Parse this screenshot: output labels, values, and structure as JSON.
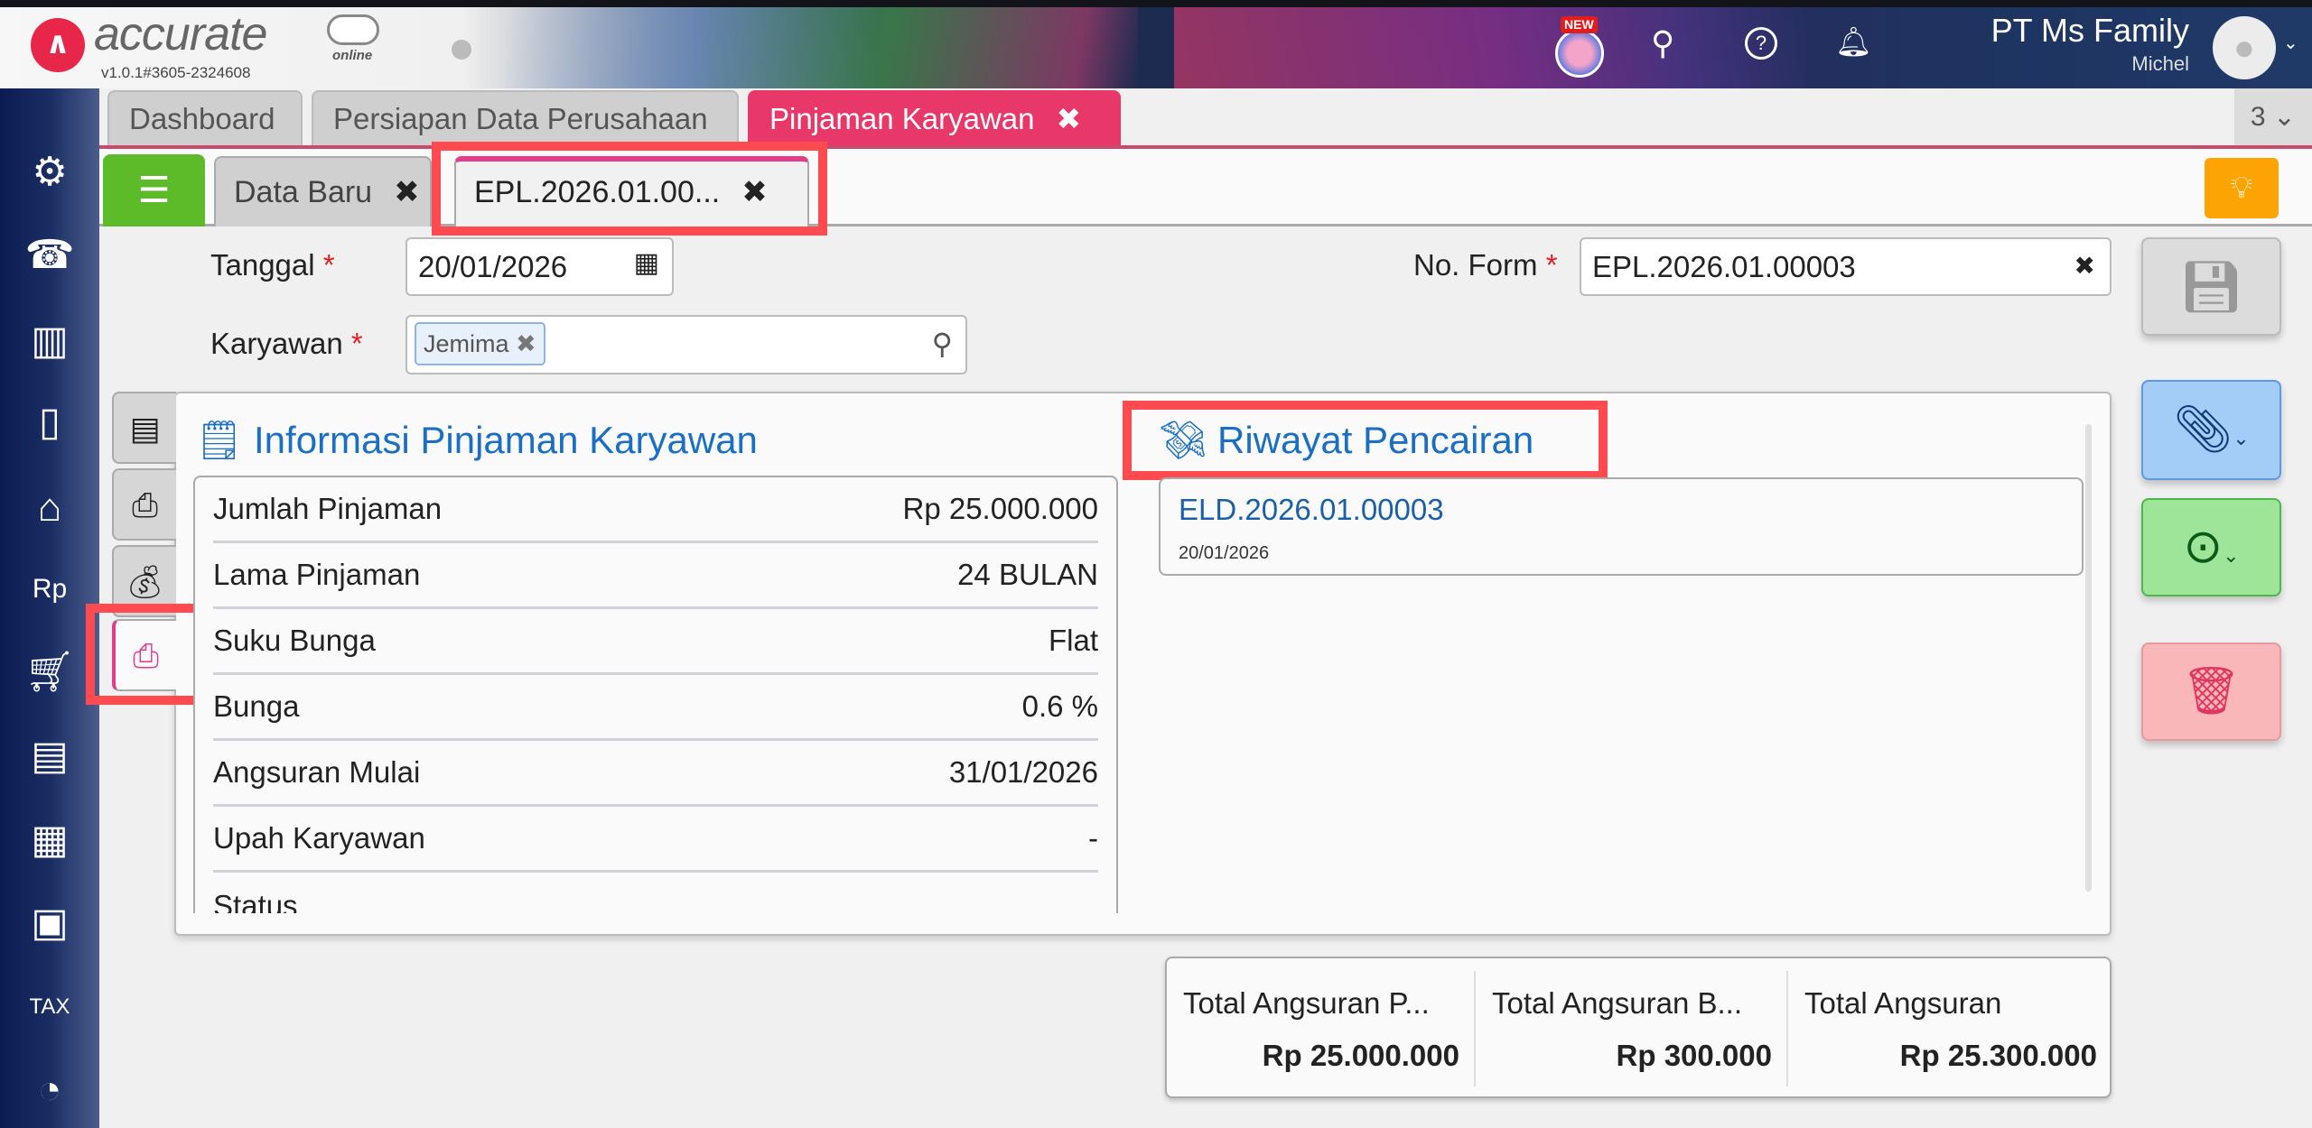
{
  "header": {
    "logo_text": "accurate",
    "logo_sub": "online",
    "version": "v1.0.1#3605-2324608",
    "new_badge": "NEW",
    "company": "PT Ms Family",
    "user": "Michel"
  },
  "tabs": [
    {
      "label": "Dashboard"
    },
    {
      "label": "Persiapan Data Perusahaan"
    },
    {
      "label": "Pinjaman Karyawan",
      "active": true
    }
  ],
  "tab_count": "3",
  "subtabs": [
    {
      "label": "Data Baru"
    },
    {
      "label": "EPL.2026.01.00...",
      "active": true
    }
  ],
  "form": {
    "tanggal_label": "Tanggal",
    "tanggal_value": "20/01/2026",
    "karyawan_label": "Karyawan",
    "karyawan_chip": "Jemima",
    "noform_label": "No. Form",
    "noform_value": "EPL.2026.01.00003",
    "required_mark": "*"
  },
  "info": {
    "title": "Informasi Pinjaman Karyawan",
    "rows": [
      {
        "label": "Jumlah Pinjaman",
        "value": "Rp 25.000.000"
      },
      {
        "label": "Lama Pinjaman",
        "value": "24 BULAN"
      },
      {
        "label": "Suku Bunga",
        "value": "Flat"
      },
      {
        "label": "Bunga",
        "value": "0.6 %"
      },
      {
        "label": "Angsuran Mulai",
        "value": "31/01/2026"
      },
      {
        "label": "Upah Karyawan",
        "value": "-"
      },
      {
        "label": "Status",
        "value": ""
      }
    ]
  },
  "riwayat": {
    "title": "Riwayat Pencairan",
    "items": [
      {
        "number": "ELD.2026.01.00003",
        "date": "20/01/2026"
      }
    ]
  },
  "totals": [
    {
      "label": "Total Angsuran P...",
      "value": "Rp 25.000.000"
    },
    {
      "label": "Total Angsuran B...",
      "value": "Rp 300.000"
    },
    {
      "label": "Total Angsuran",
      "value": "Rp 25.300.000"
    }
  ],
  "colors": {
    "brand": "#e8386a",
    "link": "#1a6fc4",
    "new_button": "#5dbb2a",
    "tip": "#fba404",
    "highlight": "#ff4b50"
  }
}
